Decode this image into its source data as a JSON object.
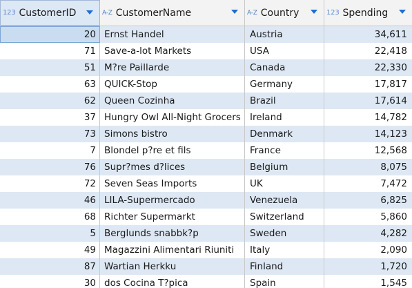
{
  "columns": [
    {
      "label": "CustomerID",
      "type_icon": "123",
      "type_kind": "num"
    },
    {
      "label": "CustomerName",
      "type_icon": "A-Z",
      "type_kind": "text"
    },
    {
      "label": "Country",
      "type_icon": "A-Z",
      "type_kind": "text"
    },
    {
      "label": "Spending",
      "type_icon": "123",
      "type_kind": "num"
    }
  ],
  "rows": [
    {
      "id": "20",
      "name": "Ernst Handel",
      "country": "Austria",
      "spending": "34,611"
    },
    {
      "id": "71",
      "name": "Save-a-lot Markets",
      "country": "USA",
      "spending": "22,418"
    },
    {
      "id": "51",
      "name": "M?re Paillarde",
      "country": "Canada",
      "spending": "22,330"
    },
    {
      "id": "63",
      "name": "QUICK-Stop",
      "country": "Germany",
      "spending": "17,817"
    },
    {
      "id": "62",
      "name": "Queen Cozinha",
      "country": "Brazil",
      "spending": "17,614"
    },
    {
      "id": "37",
      "name": "Hungry Owl All-Night Grocers",
      "country": "Ireland",
      "spending": "14,782"
    },
    {
      "id": "73",
      "name": "Simons bistro",
      "country": "Denmark",
      "spending": "14,123"
    },
    {
      "id": "7",
      "name": "Blondel p?re et fils",
      "country": "France",
      "spending": "12,568"
    },
    {
      "id": "76",
      "name": "Supr?mes d?lices",
      "country": "Belgium",
      "spending": "8,075"
    },
    {
      "id": "72",
      "name": "Seven Seas Imports",
      "country": "UK",
      "spending": "7,472"
    },
    {
      "id": "46",
      "name": "LILA-Supermercado",
      "country": "Venezuela",
      "spending": "6,825"
    },
    {
      "id": "68",
      "name": "Richter Supermarkt",
      "country": "Switzerland",
      "spending": "5,860"
    },
    {
      "id": "5",
      "name": "Berglunds snabbk?p",
      "country": "Sweden",
      "spending": "4,282"
    },
    {
      "id": "49",
      "name": "Magazzini Alimentari Riuniti",
      "country": "Italy",
      "spending": "2,090"
    },
    {
      "id": "87",
      "name": "Wartian Herkku",
      "country": "Finland",
      "spending": "1,720"
    },
    {
      "id": "30",
      "name": "dos Cocina T?pica",
      "country": "Spain",
      "spending": "1,545"
    }
  ],
  "selected_row_index": 0,
  "colors": {
    "alt_row": "#dde8f4",
    "header_bg": "#f3f3f3",
    "sort_arrow": "#1e6fd0",
    "type_icon": "#4a7fc0"
  }
}
